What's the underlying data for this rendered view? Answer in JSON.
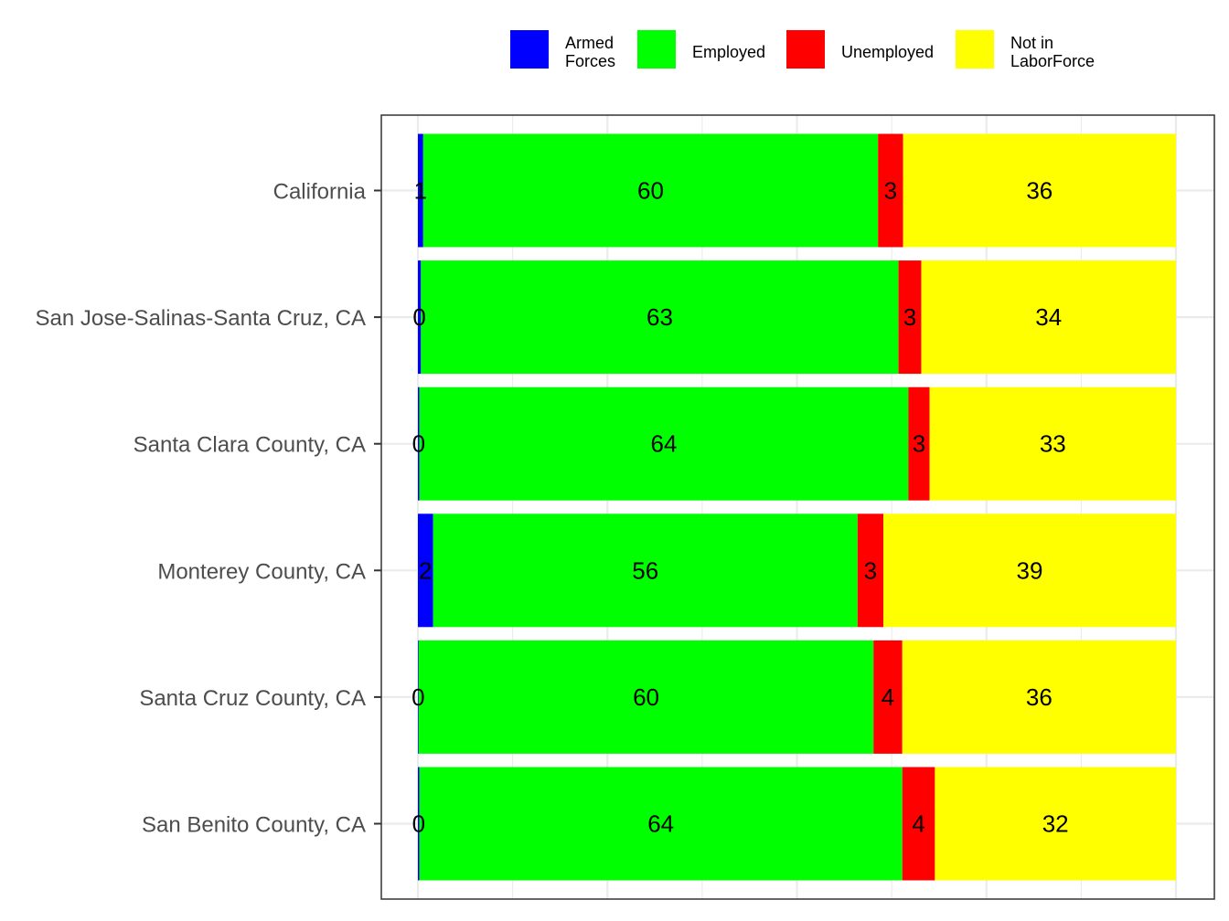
{
  "chart_data": {
    "type": "bar",
    "orientation": "horizontal",
    "stacked": true,
    "title": "",
    "xlabel": "",
    "ylabel": "",
    "xlim": [
      0,
      100
    ],
    "grid": true,
    "legend_position": "top",
    "categories": [
      "California",
      "San Jose-Salinas-Santa Cruz, CA",
      "Santa Clara County, CA",
      "Monterey County, CA",
      "Santa Cruz County, CA",
      "San Benito County, CA"
    ],
    "series": [
      {
        "name": "Armed Forces",
        "legend_lines": [
          "Armed",
          "Forces"
        ],
        "color": "#0000FF",
        "values": [
          0.7,
          0.4,
          0.2,
          2.0,
          0.1,
          0.2
        ],
        "labels": [
          "1",
          "0",
          "0",
          "2",
          "0",
          "0"
        ]
      },
      {
        "name": "Employed",
        "legend_lines": [
          "Employed"
        ],
        "color": "#00FF00",
        "values": [
          60.0,
          63.0,
          64.5,
          56.0,
          60.0,
          63.7
        ],
        "labels": [
          "60",
          "63",
          "64",
          "56",
          "60",
          "64"
        ]
      },
      {
        "name": "Unemployed",
        "legend_lines": [
          "Unemployed"
        ],
        "color": "#FF0000",
        "values": [
          3.3,
          3.0,
          2.8,
          3.4,
          3.8,
          4.3
        ],
        "labels": [
          "3",
          "3",
          "3",
          "3",
          "4",
          "4"
        ]
      },
      {
        "name": "Not in LaborForce",
        "legend_lines": [
          "Not in",
          "LaborForce"
        ],
        "color": "#FFFF00",
        "values": [
          36.0,
          33.6,
          32.5,
          38.6,
          36.1,
          31.8
        ],
        "labels": [
          "36",
          "34",
          "33",
          "39",
          "36",
          "32"
        ]
      }
    ]
  }
}
